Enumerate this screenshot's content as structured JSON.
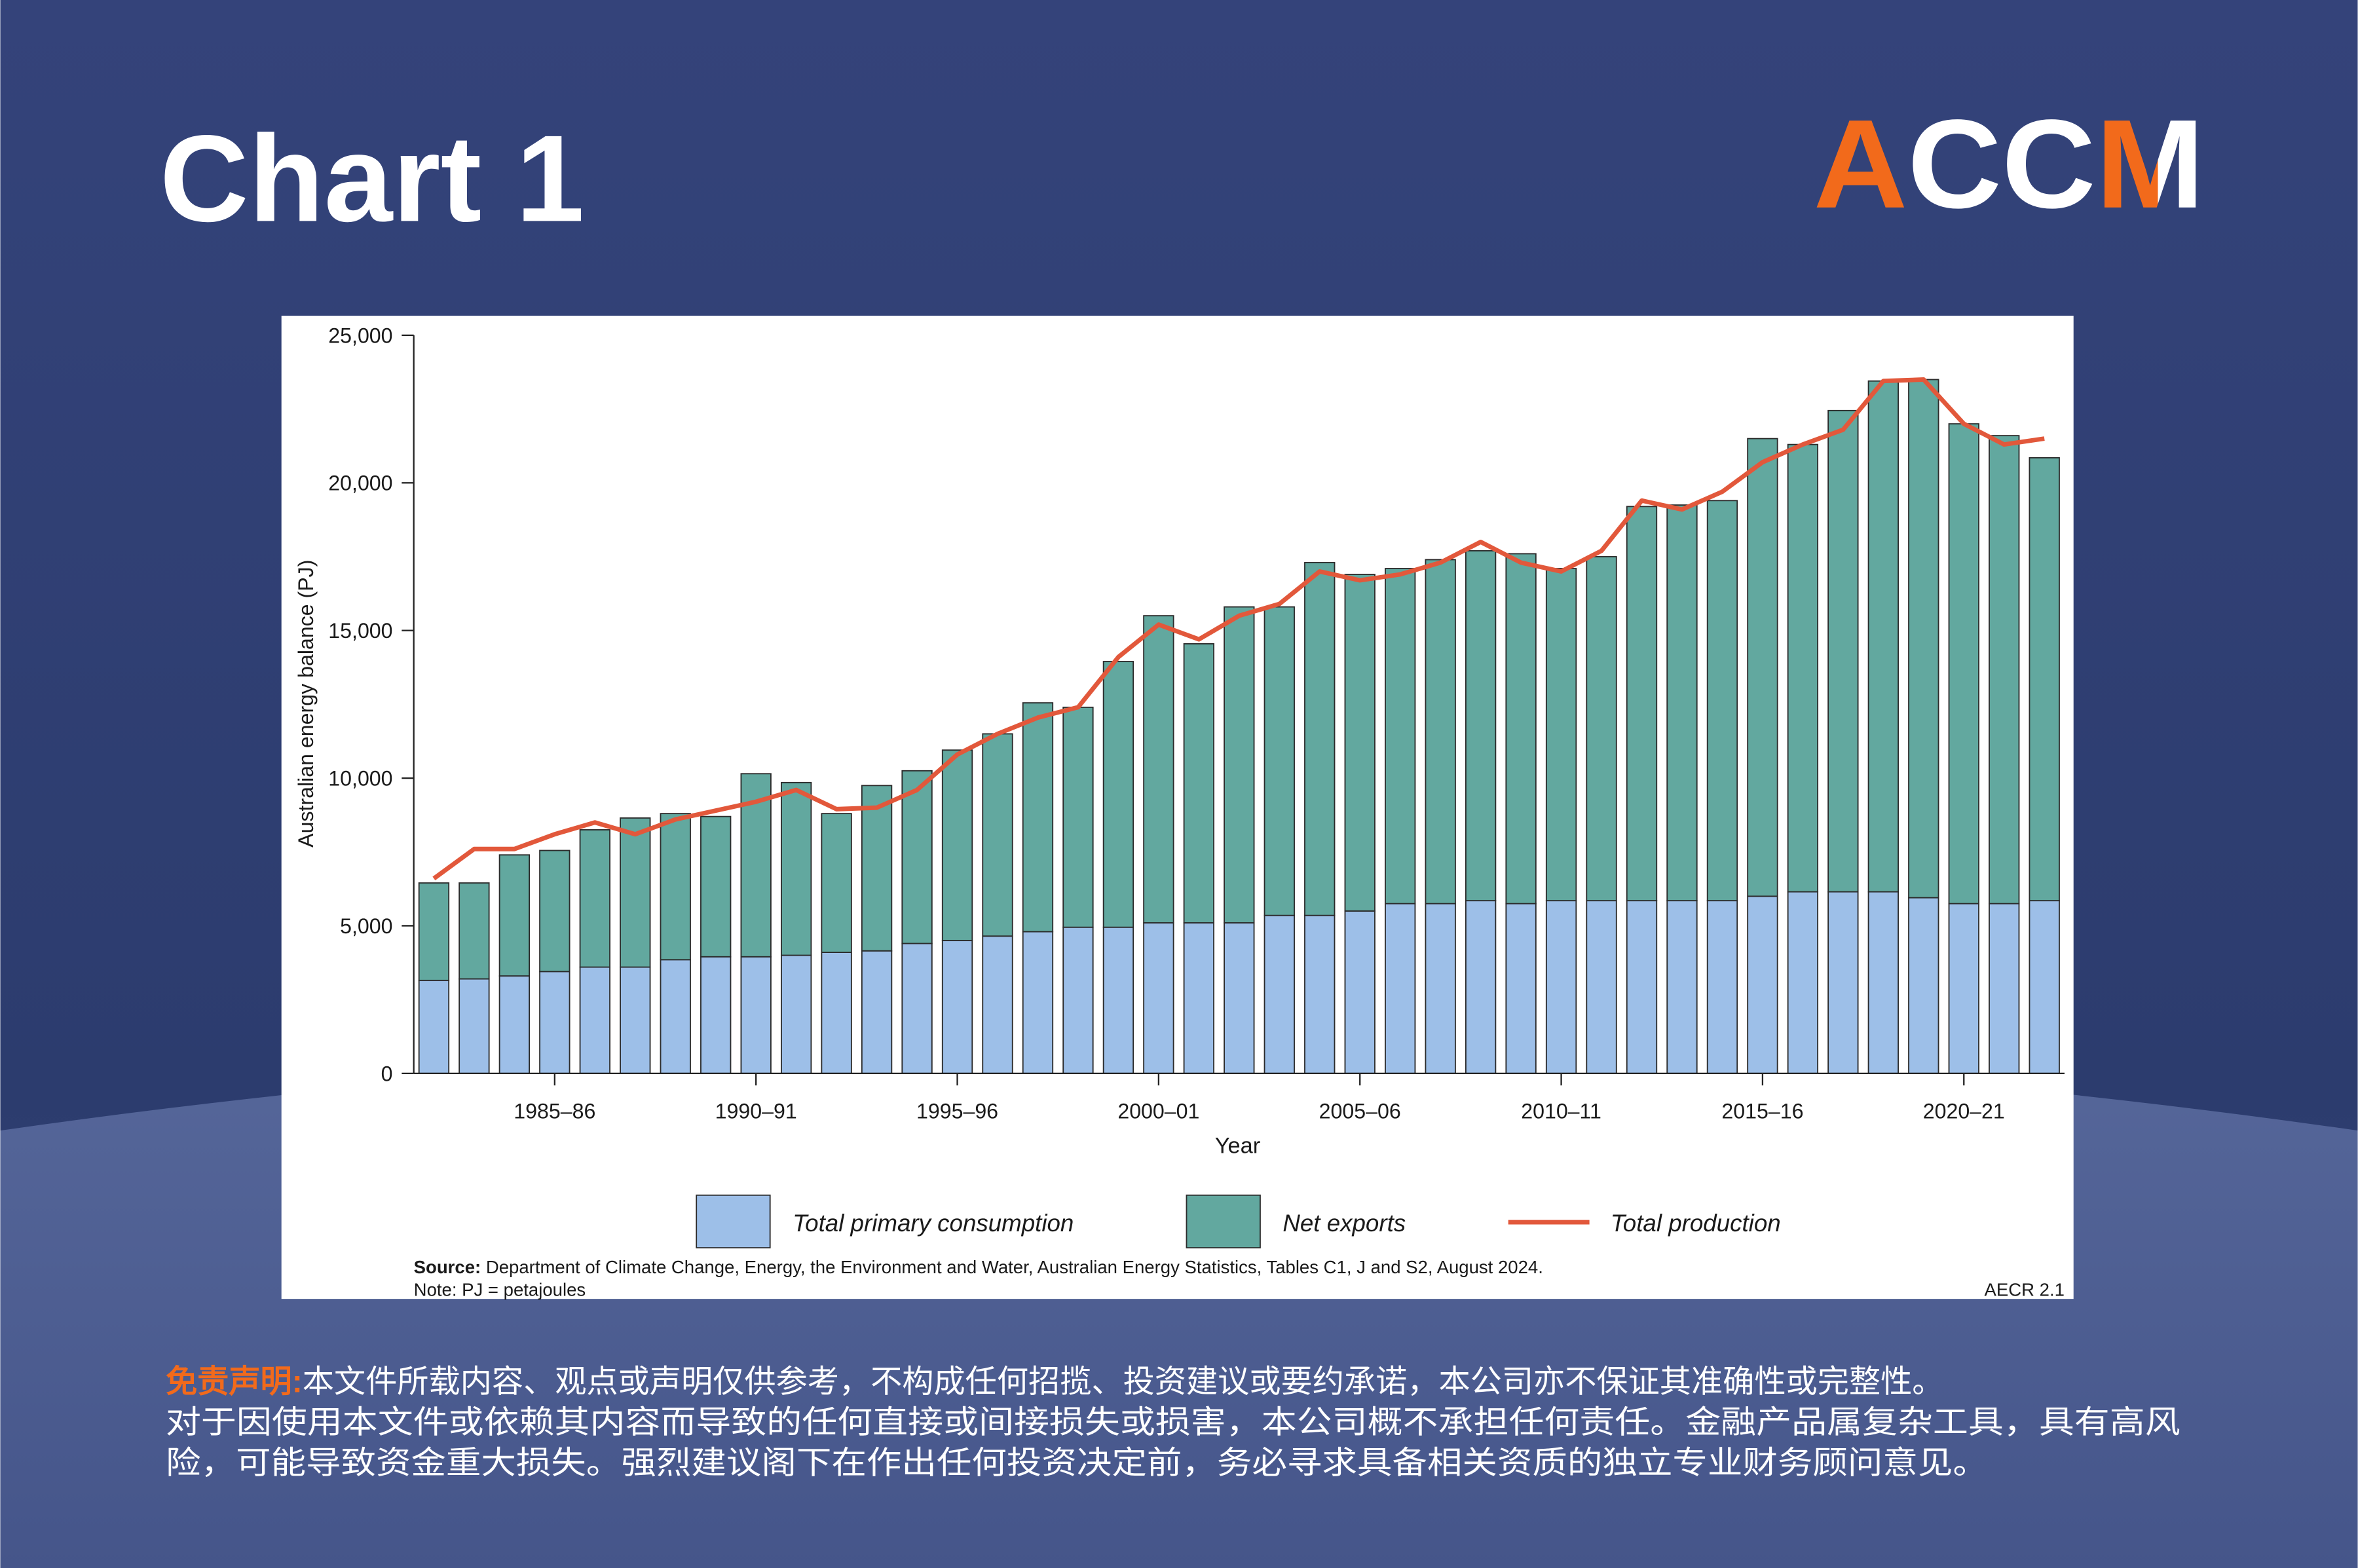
{
  "header": {
    "title": "Chart 1",
    "logo": "ACCM"
  },
  "chart_data": {
    "type": "bar",
    "stacked": true,
    "categories": [
      null,
      null,
      null,
      "1985–86",
      null,
      null,
      null,
      null,
      "1990–91",
      null,
      null,
      null,
      null,
      "1995–96",
      null,
      null,
      null,
      null,
      "2000–01",
      null,
      null,
      null,
      null,
      "2005–06",
      null,
      null,
      null,
      null,
      "2010–11",
      null,
      null,
      null,
      null,
      "2015–16",
      null,
      null,
      null,
      null,
      "2020–21",
      null,
      null
    ],
    "series": [
      {
        "name": "Total primary consumption",
        "type": "bar",
        "color": "#9dbfe8",
        "values": [
          3150,
          3200,
          3300,
          3450,
          3600,
          3600,
          3850,
          3950,
          3950,
          4000,
          4100,
          4150,
          4400,
          4500,
          4650,
          4800,
          4950,
          4950,
          5100,
          5100,
          5100,
          5350,
          5350,
          5500,
          5750,
          5750,
          5850,
          5750,
          5850,
          5850,
          5850,
          5850,
          5850,
          6000,
          6150,
          6150,
          6150,
          5950,
          5750,
          5750,
          5850
        ]
      },
      {
        "name": "Net exports",
        "type": "bar",
        "color": "#62a89f",
        "values": [
          3300,
          3250,
          4100,
          4100,
          4650,
          5050,
          4950,
          4750,
          6200,
          5850,
          4700,
          5600,
          5850,
          6450,
          6850,
          7750,
          7450,
          9000,
          10400,
          9450,
          10700,
          10450,
          11950,
          11400,
          11350,
          11650,
          11850,
          11850,
          11250,
          11650,
          13350,
          13400,
          13550,
          15500,
          15150,
          16300,
          17300,
          17550,
          16250,
          15850,
          15000
        ]
      },
      {
        "name": "Total production",
        "type": "line",
        "color": "#e2583b",
        "values": [
          6600,
          7600,
          7600,
          8100,
          8500,
          8100,
          8600,
          8900,
          9200,
          9600,
          8950,
          9000,
          9600,
          10800,
          11500,
          12050,
          12400,
          14100,
          15200,
          14700,
          15500,
          15900,
          17000,
          16700,
          16900,
          17300,
          18000,
          17300,
          17000,
          17700,
          19400,
          19100,
          19700,
          20700,
          21300,
          21800,
          23450,
          23500,
          22000,
          21300,
          21500
        ]
      }
    ],
    "x_label": "Year",
    "y_label": "Australian energy balance (PJ)",
    "ylim": [
      0,
      25000
    ],
    "yticks": [
      0,
      {
        "value": 5000,
        "label": "5,000"
      },
      {
        "value": 10000,
        "label": "10,000"
      },
      {
        "value": 15000,
        "label": "15,000"
      },
      {
        "value": 20000,
        "label": "20,000"
      },
      {
        "value": 25000,
        "label": "25,000"
      }
    ],
    "grid": false,
    "legend": "bottom",
    "source_label": "Source:",
    "source": "Department of Climate Change, Energy, the Environment and Water, Australian Energy Statistics, Tables C1, J and S2, August 2024.",
    "note": "Note: PJ = petajoules",
    "figure_id": "AECR 2.1"
  },
  "disclaimer": {
    "label": "免责声明:",
    "lines": [
      "本文件所载内容、观点或声明仅供参考，不构成任何招揽、投资建议或要约承诺，本公司亦不保证其准确性或完整性。",
      "对于因使用本文件或依赖其内容而导致的任何直接或间接损失或损害，本公司概不承担任何责任。金融产品属复杂工具，具有高风",
      "险，可能导致资金重大损失。强烈建议阁下在作出任何投资决定前，务必寻求具备相关资质的独立专业财务顾问意见。"
    ]
  }
}
